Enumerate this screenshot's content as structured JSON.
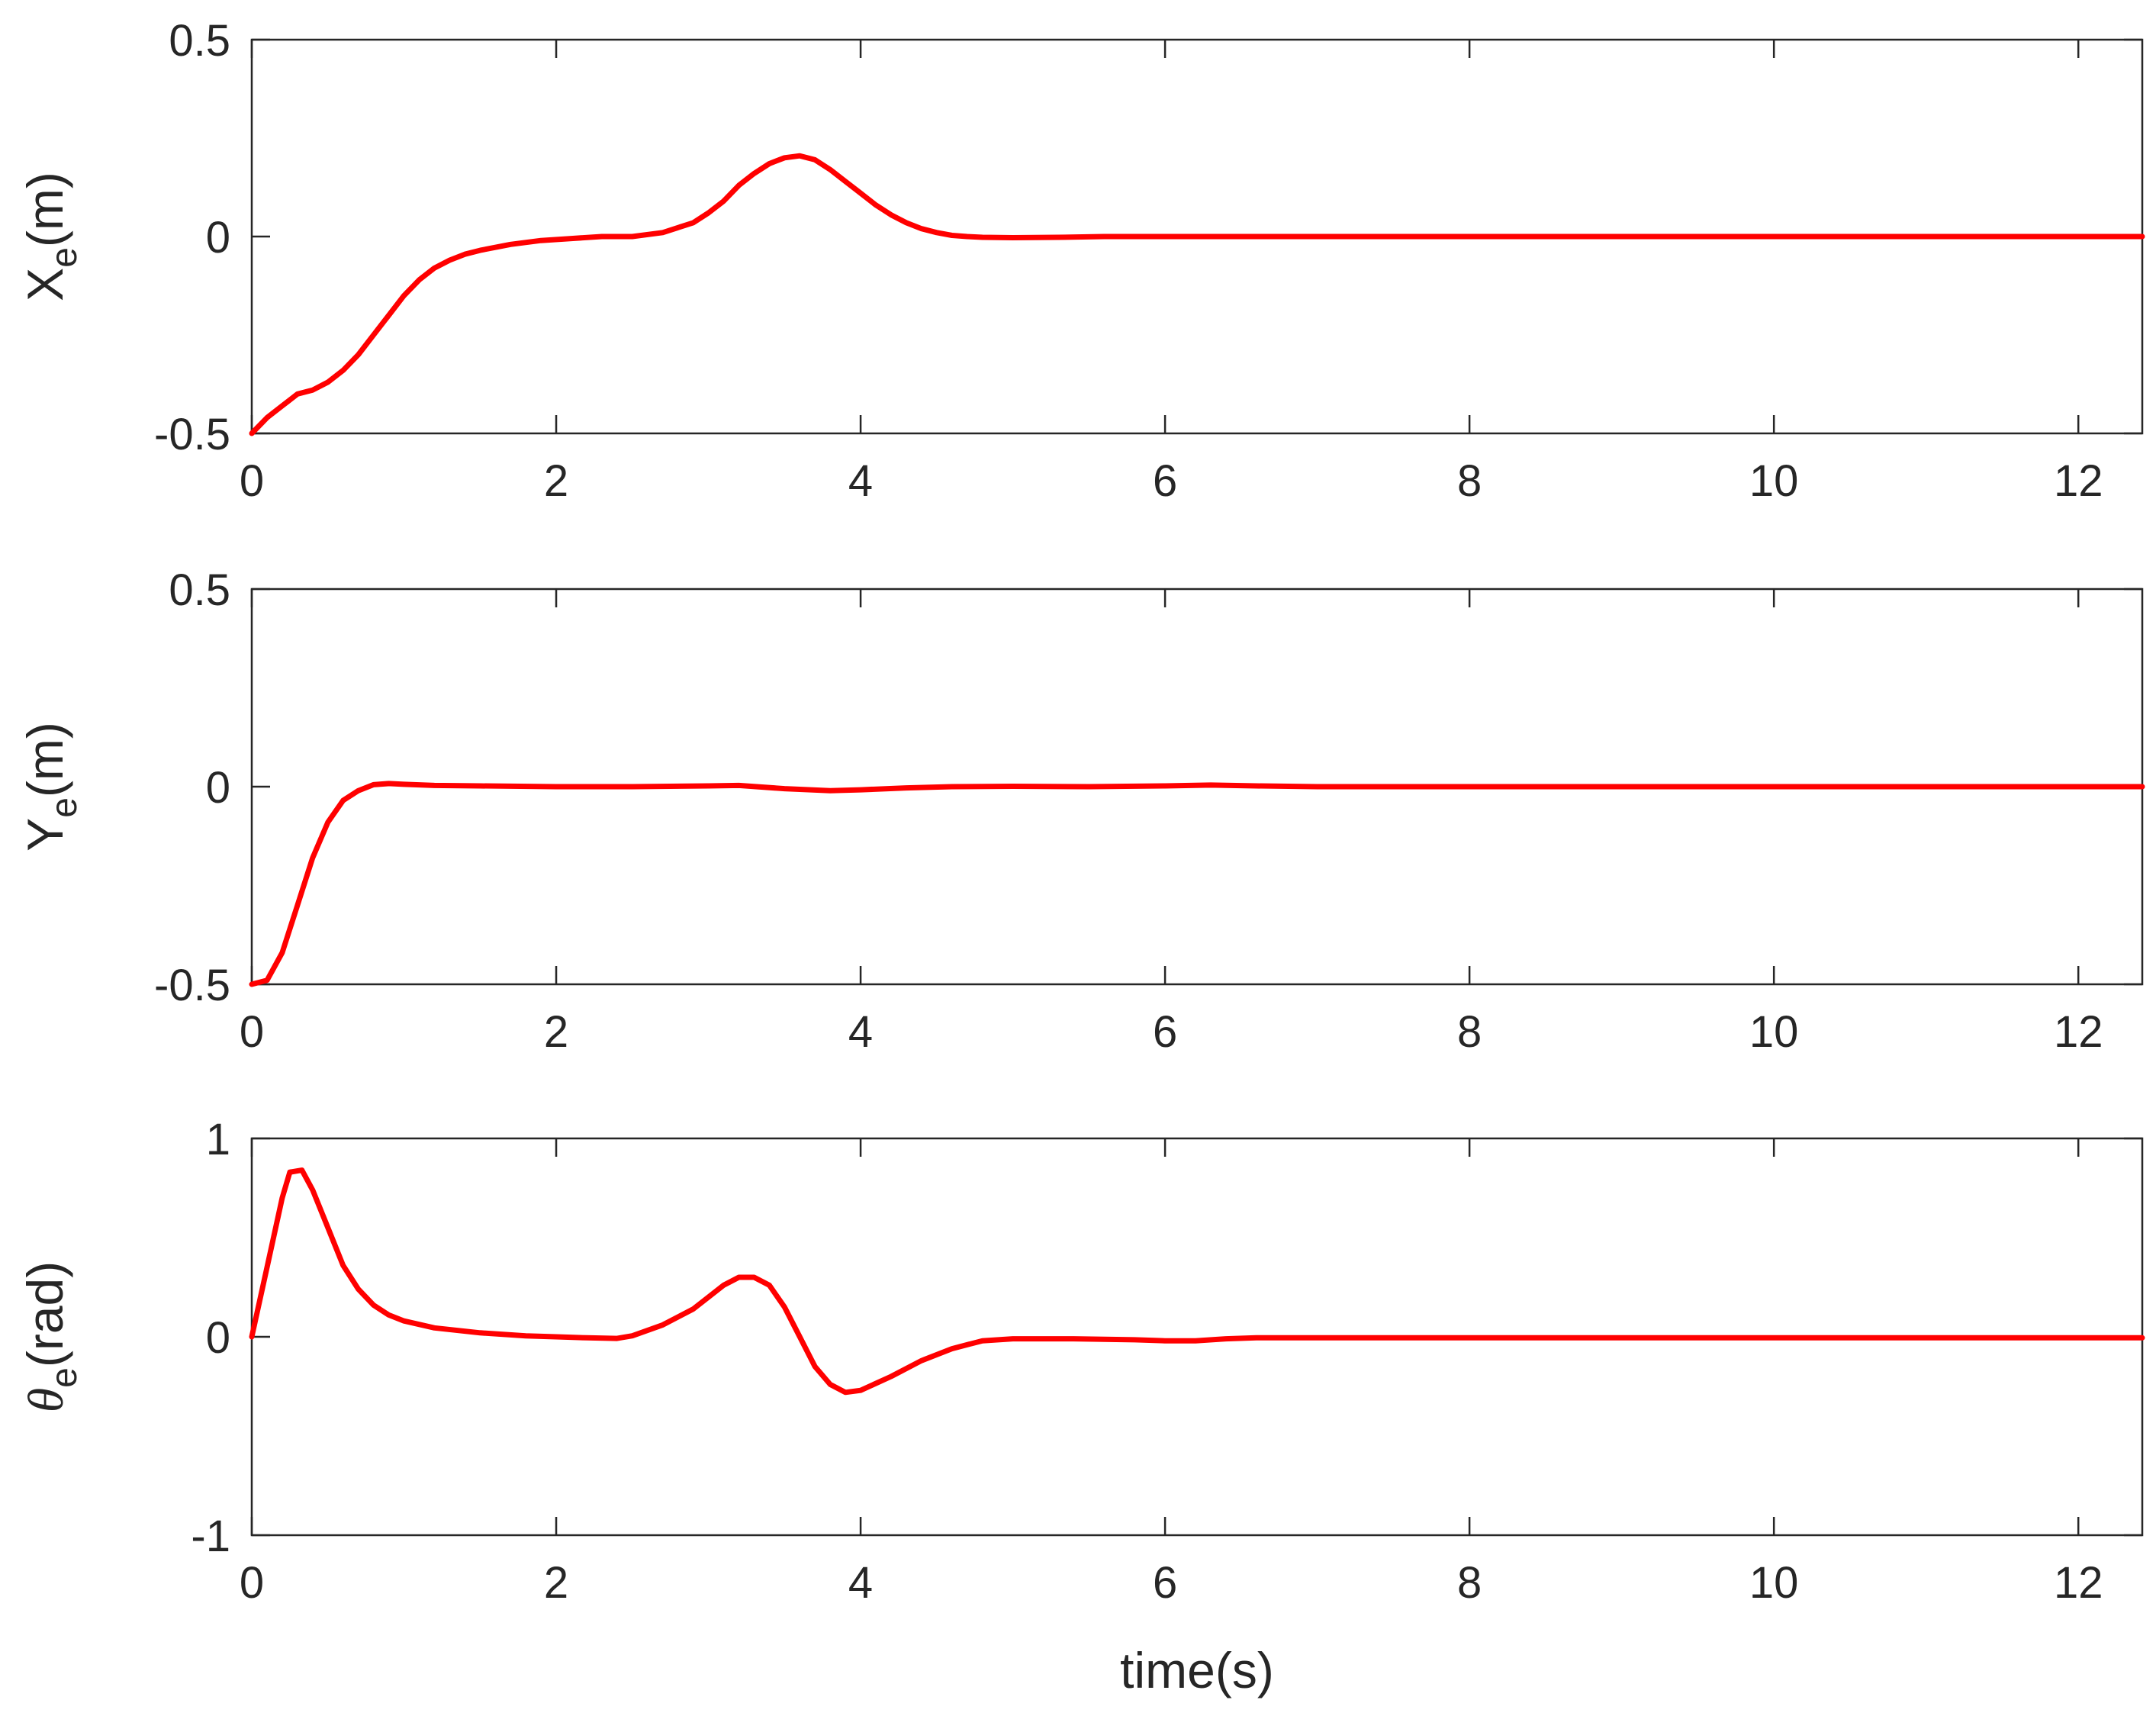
{
  "chart_data": [
    {
      "type": "line",
      "xlabel": "",
      "ylabel_main": "X",
      "ylabel_sub": "e",
      "ylabel_unit": "(m)",
      "ylabel_theta": false,
      "xlim": [
        0,
        12.42
      ],
      "ylim": [
        -0.5,
        0.5
      ],
      "xticks": [
        0,
        2,
        4,
        6,
        8,
        10,
        12
      ],
      "yticks": [
        -0.5,
        0,
        0.5
      ],
      "xtick_labels": [
        "0",
        "2",
        "4",
        "6",
        "8",
        "10",
        "12"
      ],
      "ytick_labels": [
        "-0.5",
        "0",
        "0.5"
      ],
      "grid": false,
      "series": [
        {
          "color": "#ff0000",
          "x": [
            0,
            0.1,
            0.2,
            0.3,
            0.4,
            0.5,
            0.6,
            0.7,
            0.8,
            0.9,
            1.0,
            1.1,
            1.2,
            1.3,
            1.4,
            1.5,
            1.7,
            1.9,
            2.1,
            2.3,
            2.5,
            2.7,
            2.9,
            3.0,
            3.1,
            3.2,
            3.3,
            3.4,
            3.5,
            3.6,
            3.7,
            3.8,
            3.9,
            4.0,
            4.1,
            4.2,
            4.3,
            4.4,
            4.5,
            4.6,
            4.7,
            4.8,
            5.0,
            5.3,
            5.6,
            6.0,
            6.5,
            7.0,
            8.0,
            9.0,
            10.0,
            11.0,
            12.42
          ],
          "y": [
            -0.5,
            -0.46,
            -0.43,
            -0.4,
            -0.39,
            -0.37,
            -0.34,
            -0.3,
            -0.25,
            -0.2,
            -0.15,
            -0.11,
            -0.08,
            -0.06,
            -0.045,
            -0.035,
            -0.02,
            -0.01,
            -0.005,
            0.0,
            0.0,
            0.01,
            0.035,
            0.06,
            0.09,
            0.13,
            0.16,
            0.185,
            0.2,
            0.205,
            0.195,
            0.17,
            0.14,
            0.11,
            0.08,
            0.055,
            0.035,
            0.02,
            0.01,
            0.003,
            0.0,
            -0.002,
            -0.003,
            -0.002,
            0.0,
            0.0,
            0.0,
            0.0,
            0.0,
            0.0,
            0.0,
            0.0,
            0.0
          ]
        }
      ]
    },
    {
      "type": "line",
      "xlabel": "",
      "ylabel_main": "Y",
      "ylabel_sub": "e",
      "ylabel_unit": "(m)",
      "ylabel_theta": false,
      "xlim": [
        0,
        12.42
      ],
      "ylim": [
        -0.5,
        0.5
      ],
      "xticks": [
        0,
        2,
        4,
        6,
        8,
        10,
        12
      ],
      "yticks": [
        -0.5,
        0,
        0.5
      ],
      "xtick_labels": [
        "0",
        "2",
        "4",
        "6",
        "8",
        "10",
        "12"
      ],
      "ytick_labels": [
        "-0.5",
        "0",
        "0.5"
      ],
      "grid": false,
      "series": [
        {
          "color": "#ff0000",
          "x": [
            0,
            0.1,
            0.2,
            0.3,
            0.4,
            0.5,
            0.6,
            0.7,
            0.8,
            0.9,
            1.0,
            1.2,
            1.5,
            2.0,
            2.5,
            3.0,
            3.2,
            3.5,
            3.8,
            4.0,
            4.3,
            4.6,
            5.0,
            5.5,
            6.0,
            6.3,
            6.6,
            7.0,
            8.0,
            9.0,
            10.0,
            11.0,
            12.42
          ],
          "y": [
            -0.5,
            -0.49,
            -0.42,
            -0.3,
            -0.18,
            -0.09,
            -0.035,
            -0.01,
            0.005,
            0.008,
            0.006,
            0.003,
            0.002,
            0.0,
            0.0,
            0.002,
            0.003,
            -0.005,
            -0.01,
            -0.008,
            -0.003,
            0.0,
            0.001,
            0.0,
            0.002,
            0.004,
            0.002,
            0.0,
            0.0,
            0.0,
            0.0,
            0.0,
            0.0
          ]
        }
      ]
    },
    {
      "type": "line",
      "xlabel": "time(s)",
      "ylabel_main": "θ",
      "ylabel_sub": "e",
      "ylabel_unit": "(rad)",
      "ylabel_theta": true,
      "xlim": [
        0,
        12.42
      ],
      "ylim": [
        -1,
        1
      ],
      "xticks": [
        0,
        2,
        4,
        6,
        8,
        10,
        12
      ],
      "yticks": [
        -1,
        0,
        1
      ],
      "xtick_labels": [
        "0",
        "2",
        "4",
        "6",
        "8",
        "10",
        "12"
      ],
      "ytick_labels": [
        "-1",
        "0",
        "1"
      ],
      "grid": false,
      "series": [
        {
          "color": "#ff0000",
          "x": [
            0,
            0.1,
            0.2,
            0.25,
            0.33,
            0.4,
            0.5,
            0.6,
            0.7,
            0.8,
            0.9,
            1.0,
            1.2,
            1.5,
            1.8,
            2.0,
            2.2,
            2.4,
            2.5,
            2.7,
            2.9,
            3.0,
            3.1,
            3.2,
            3.3,
            3.4,
            3.5,
            3.6,
            3.7,
            3.8,
            3.9,
            4.0,
            4.2,
            4.4,
            4.6,
            4.8,
            5.0,
            5.4,
            5.8,
            6.0,
            6.2,
            6.4,
            6.6,
            7.0,
            8.0,
            9.0,
            10.0,
            11.0,
            12.42
          ],
          "y": [
            0.0,
            0.35,
            0.7,
            0.83,
            0.84,
            0.74,
            0.55,
            0.36,
            0.24,
            0.16,
            0.11,
            0.08,
            0.045,
            0.02,
            0.005,
            0.0,
            -0.005,
            -0.008,
            0.005,
            0.06,
            0.14,
            0.2,
            0.26,
            0.3,
            0.3,
            0.26,
            0.15,
            0.0,
            -0.15,
            -0.24,
            -0.28,
            -0.27,
            -0.2,
            -0.12,
            -0.06,
            -0.02,
            -0.01,
            -0.01,
            -0.015,
            -0.02,
            -0.02,
            -0.01,
            -0.005,
            -0.005,
            -0.005,
            -0.005,
            -0.005,
            -0.005,
            -0.005
          ]
        }
      ]
    }
  ]
}
